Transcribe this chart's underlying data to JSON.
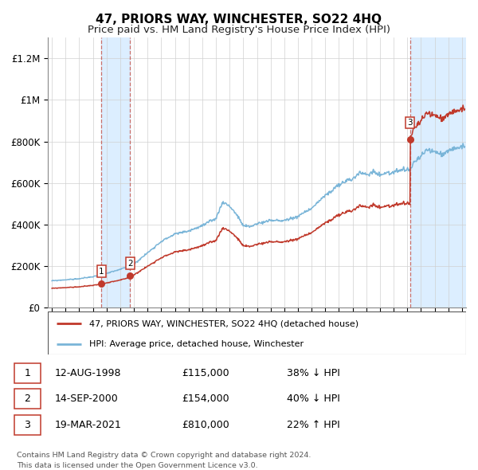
{
  "title": "47, PRIORS WAY, WINCHESTER, SO22 4HQ",
  "subtitle": "Price paid vs. HM Land Registry's House Price Index (HPI)",
  "ylabel_ticks": [
    "£0",
    "£200K",
    "£400K",
    "£600K",
    "£800K",
    "£1M",
    "£1.2M"
  ],
  "ytick_values": [
    0,
    200000,
    400000,
    600000,
    800000,
    1000000,
    1200000
  ],
  "ylim": [
    0,
    1300000
  ],
  "xlim_start": 1994.7,
  "xlim_end": 2025.3,
  "sales": [
    {
      "label": "1",
      "date": "12-AUG-1998",
      "price": 115000,
      "year": 1998.62,
      "pct": "38%",
      "dir": "↓"
    },
    {
      "label": "2",
      "date": "14-SEP-2000",
      "price": 154000,
      "year": 2000.71,
      "pct": "40%",
      "dir": "↓"
    },
    {
      "label": "3",
      "date": "19-MAR-2021",
      "price": 810000,
      "year": 2021.21,
      "pct": "22%",
      "dir": "↑"
    }
  ],
  "legend_entries": [
    "47, PRIORS WAY, WINCHESTER, SO22 4HQ (detached house)",
    "HPI: Average price, detached house, Winchester"
  ],
  "footnote1": "Contains HM Land Registry data © Crown copyright and database right 2024.",
  "footnote2": "This data is licensed under the Open Government Licence v3.0.",
  "hpi_color": "#7ab5d8",
  "price_color": "#c0392b",
  "sale_box_color": "#c0392b",
  "grid_color": "#d0d0d0",
  "shaded_color": "#dceeff"
}
